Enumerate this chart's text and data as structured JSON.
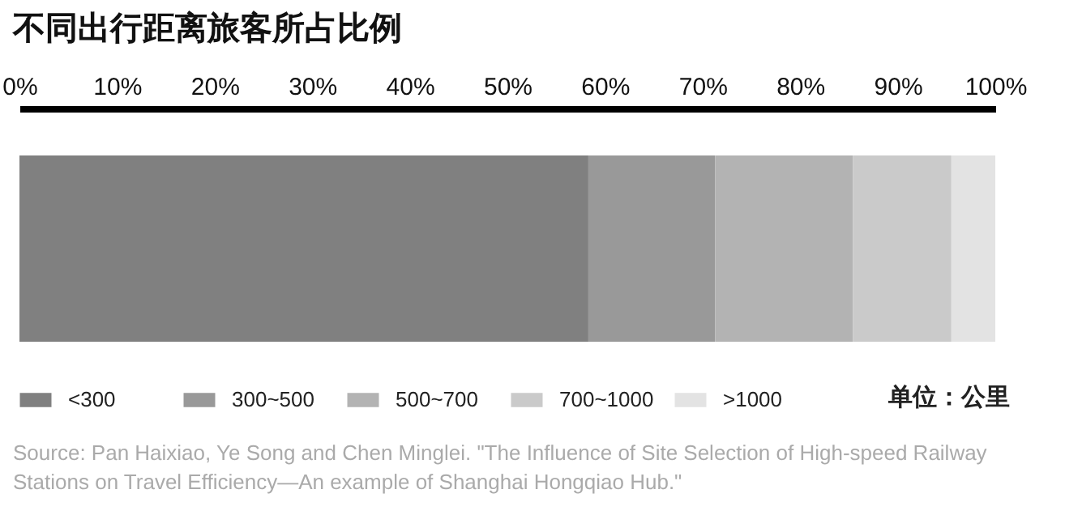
{
  "chart_data": {
    "type": "bar",
    "title": "不同出行距离旅客所占比例",
    "orientation": "horizontal",
    "stacked": true,
    "categories": [
      null
    ],
    "series": [
      {
        "name": "<300",
        "color": "#808080",
        "values": [
          58.3
        ]
      },
      {
        "name": "300~500",
        "color": "#999999",
        "values": [
          13.0
        ]
      },
      {
        "name": "500~700",
        "color": "#b3b3b3",
        "values": [
          14.1
        ]
      },
      {
        "name": "700~1000",
        "color": "#cacaca",
        "values": [
          10.1
        ]
      },
      {
        "name": ">1000",
        "color": "#e3e3e3",
        "values": [
          4.5
        ]
      }
    ],
    "xlim": [
      0,
      100
    ],
    "xticks": [
      {
        "value": 0,
        "label": "0%"
      },
      {
        "value": 10,
        "label": "10%"
      },
      {
        "value": 20,
        "label": "20%"
      },
      {
        "value": 30,
        "label": "30%"
      },
      {
        "value": 40,
        "label": "40%"
      },
      {
        "value": 50,
        "label": "50%"
      },
      {
        "value": 60,
        "label": "60%"
      },
      {
        "value": 70,
        "label": "70%"
      },
      {
        "value": 80,
        "label": "80%"
      },
      {
        "value": 90,
        "label": "90%"
      },
      {
        "value": 100,
        "label": "100%"
      }
    ],
    "grid": false,
    "legend": "bottom",
    "annotations": [
      "单位：公里",
      "Source: Pan Haixiao, Ye Song and Chen Minglei. \"The Influence of Site Selection of High-speed Railway Stations on Travel Efficiency—An example of Shanghai Hongqiao Hub.\""
    ]
  }
}
